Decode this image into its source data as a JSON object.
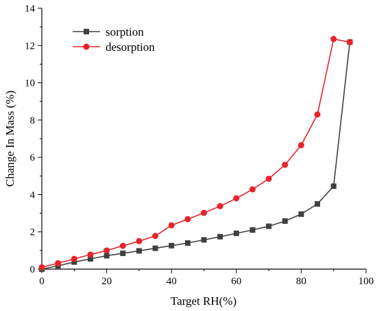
{
  "chart_data": {
    "type": "line",
    "title": "",
    "xlabel": "Target RH(%)",
    "ylabel": "Change In Mass (%)",
    "xlim": [
      0,
      100
    ],
    "ylim": [
      0,
      14
    ],
    "xticks": [
      "0",
      "20",
      "40",
      "60",
      "80",
      "100"
    ],
    "yticks": [
      "0",
      "2",
      "4",
      "6",
      "8",
      "10",
      "12",
      "14"
    ],
    "legend_position": "top-left",
    "grid": false,
    "series": [
      {
        "name": "sorption",
        "color": "#404040",
        "marker": "square",
        "x": [
          0,
          5,
          10,
          15,
          20,
          25,
          30,
          35,
          40,
          45,
          50,
          55,
          60,
          65,
          70,
          75,
          80,
          85,
          90,
          95
        ],
        "y": [
          0.0,
          0.18,
          0.38,
          0.55,
          0.72,
          0.85,
          0.98,
          1.12,
          1.26,
          1.4,
          1.57,
          1.74,
          1.92,
          2.1,
          2.3,
          2.58,
          2.95,
          3.5,
          4.45,
          12.18
        ]
      },
      {
        "name": "desorption",
        "color": "#e8232b",
        "marker": "circle",
        "x": [
          0,
          5,
          10,
          15,
          20,
          25,
          30,
          35,
          40,
          45,
          50,
          55,
          60,
          65,
          70,
          75,
          80,
          85,
          90,
          95
        ],
        "y": [
          0.1,
          0.32,
          0.55,
          0.78,
          1.0,
          1.25,
          1.5,
          1.78,
          2.35,
          2.68,
          3.02,
          3.38,
          3.8,
          4.28,
          4.85,
          5.6,
          6.65,
          8.3,
          12.35,
          12.18
        ]
      }
    ]
  }
}
